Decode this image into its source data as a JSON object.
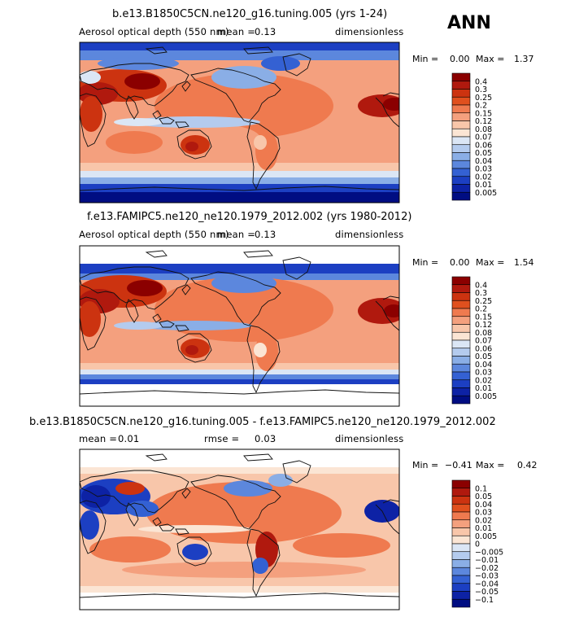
{
  "season": "ANN",
  "panels": [
    {
      "title": "b.e13.B1850C5CN.ne120_g16.tuning.005 (yrs 1-24)",
      "variable": "Aerosol optical depth (550 nm)",
      "stat_label": "mean =",
      "stat_value": "0.13",
      "rmse_label": "",
      "rmse_value": "",
      "units": "dimensionless",
      "min_label": "Min =",
      "min_value": "0.00",
      "max_label": "Max =",
      "max_value": "1.37",
      "colorbar_labels": [
        "0.4",
        "0.3",
        "0.25",
        "0.2",
        "0.15",
        "0.12",
        "0.08",
        "0.07",
        "0.06",
        "0.05",
        "0.04",
        "0.03",
        "0.02",
        "0.01",
        "0.005"
      ]
    },
    {
      "title": "f.e13.FAMIPC5.ne120_ne120.1979_2012.002 (yrs 1980-2012)",
      "variable": "Aerosol optical depth (550 nm)",
      "stat_label": "mean =",
      "stat_value": "0.13",
      "rmse_label": "",
      "rmse_value": "",
      "units": "dimensionless",
      "min_label": "Min =",
      "min_value": "0.00",
      "max_label": "Max =",
      "max_value": "1.54",
      "colorbar_labels": [
        "0.4",
        "0.3",
        "0.25",
        "0.2",
        "0.15",
        "0.12",
        "0.08",
        "0.07",
        "0.06",
        "0.05",
        "0.04",
        "0.03",
        "0.02",
        "0.01",
        "0.005"
      ]
    },
    {
      "title": "b.e13.B1850C5CN.ne120_g16.tuning.005 - f.e13.FAMIPC5.ne120_ne120.1979_2012.002",
      "variable": "",
      "stat_label": "mean =",
      "stat_value": "0.01",
      "rmse_label": "rmse =",
      "rmse_value": "0.03",
      "units": "dimensionless",
      "min_label": "Min =",
      "min_value": "−0.41",
      "max_label": "Max =",
      "max_value": "0.42",
      "colorbar_labels": [
        "0.1",
        "0.05",
        "0.04",
        "0.03",
        "0.02",
        "0.01",
        "0.005",
        "0",
        "−0.005",
        "−0.01",
        "−0.02",
        "−0.03",
        "−0.04",
        "−0.05",
        "−0.1"
      ]
    }
  ],
  "colors": {
    "scale": [
      "#8b0000",
      "#b0190e",
      "#cc3310",
      "#e0501e",
      "#ef7a4f",
      "#f4a07e",
      "#f8c6aa",
      "#fbe5d4",
      "#dbe6f5",
      "#b4cbee",
      "#8aaee6",
      "#5c87dd",
      "#3461d3",
      "#1c3fc2",
      "#0d22a5",
      "#000d82"
    ],
    "frame": "#000000",
    "coast": "#111111"
  },
  "chart_data": [
    {
      "type": "heatmap",
      "title": "b.e13.B1850C5CN.ne120_g16.tuning.005 (yrs 1-24)",
      "variable": "Aerosol optical depth (550 nm)",
      "units": "dimensionless",
      "mean": 0.13,
      "min": 0.0,
      "max": 1.37,
      "contour_levels": [
        0.005,
        0.01,
        0.02,
        0.03,
        0.04,
        0.05,
        0.06,
        0.07,
        0.08,
        0.12,
        0.15,
        0.2,
        0.25,
        0.3,
        0.4
      ],
      "map": "global cylindrical equidistant, 0-360E"
    },
    {
      "type": "heatmap",
      "title": "f.e13.FAMIPC5.ne120_ne120.1979_2012.002 (yrs 1980-2012)",
      "variable": "Aerosol optical depth (550 nm)",
      "units": "dimensionless",
      "mean": 0.13,
      "min": 0.0,
      "max": 1.54,
      "contour_levels": [
        0.005,
        0.01,
        0.02,
        0.03,
        0.04,
        0.05,
        0.06,
        0.07,
        0.08,
        0.12,
        0.15,
        0.2,
        0.25,
        0.3,
        0.4
      ],
      "map": "global cylindrical equidistant, 0-360E"
    },
    {
      "type": "heatmap",
      "title": "b.e13.B1850C5CN.ne120_g16.tuning.005 - f.e13.FAMIPC5.ne120_ne120.1979_2012.002",
      "units": "dimensionless",
      "mean": 0.01,
      "rmse": 0.03,
      "min": -0.41,
      "max": 0.42,
      "contour_levels": [
        -0.1,
        -0.05,
        -0.04,
        -0.03,
        -0.02,
        -0.01,
        -0.005,
        0,
        0.005,
        0.01,
        0.02,
        0.03,
        0.04,
        0.05,
        0.1
      ],
      "map": "global cylindrical equidistant, 0-360E"
    }
  ]
}
